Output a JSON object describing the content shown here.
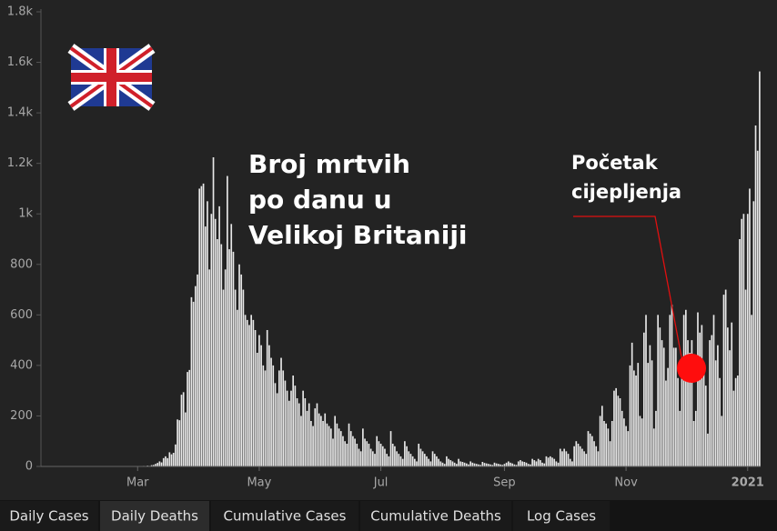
{
  "chart_data": {
    "type": "bar",
    "color": "#e8e8e8",
    "annotations": [
      {
        "lines": [
          "Broj mrtvih",
          "po danu u",
          "Velikoj Britaniji"
        ]
      },
      {
        "lines": [
          "Početak",
          "cijepljenja"
        ]
      }
    ],
    "tabs": [
      "Daily Cases",
      "Daily Deaths",
      "Cumulative Cases",
      "Cumulative Deaths",
      "Log Cases"
    ],
    "active_tab": 1,
    "xlim": [
      -0.5,
      360.5
    ],
    "xticks": [
      {
        "value": 48,
        "label": "Mar"
      },
      {
        "value": 109,
        "label": "May"
      },
      {
        "value": 170,
        "label": "Jul"
      },
      {
        "value": 232,
        "label": "Sep"
      },
      {
        "value": 293,
        "label": "Nov"
      },
      {
        "value": 354,
        "label": "2021"
      }
    ],
    "ylim": [
      0,
      1800
    ],
    "yticks": [
      0,
      200,
      400,
      600,
      800,
      {
        "value": 1000,
        "label": "1k"
      },
      {
        "value": 1200,
        "label": "1.2k"
      },
      {
        "value": 1400,
        "label": "1.4k"
      },
      {
        "value": 1600,
        "label": "1.6k"
      },
      {
        "value": 1800,
        "label": "1.8k"
      }
    ],
    "grid": false,
    "x": [
      0,
      1,
      2,
      3,
      4,
      5,
      6,
      7,
      8,
      9,
      10,
      11,
      12,
      13,
      14,
      15,
      16,
      17,
      18,
      19,
      20,
      21,
      22,
      23,
      24,
      25,
      26,
      27,
      28,
      29,
      30,
      31,
      32,
      33,
      34,
      35,
      36,
      37,
      38,
      39,
      40,
      41,
      42,
      43,
      44,
      45,
      46,
      47,
      48,
      49,
      50,
      51,
      52,
      53,
      54,
      55,
      56,
      57,
      58,
      59,
      60,
      61,
      62,
      63,
      64,
      65,
      66,
      67,
      68,
      69,
      70,
      71,
      72,
      73,
      74,
      75,
      76,
      77,
      78,
      79,
      80,
      81,
      82,
      83,
      84,
      85,
      86,
      87,
      88,
      89,
      90,
      91,
      92,
      93,
      94,
      95,
      96,
      97,
      98,
      99,
      100,
      101,
      102,
      103,
      104,
      105,
      106,
      107,
      108,
      109,
      110,
      111,
      112,
      113,
      114,
      115,
      116,
      117,
      118,
      119,
      120,
      121,
      122,
      123,
      124,
      125,
      126,
      127,
      128,
      129,
      130,
      131,
      132,
      133,
      134,
      135,
      136,
      137,
      138,
      139,
      140,
      141,
      142,
      143,
      144,
      145,
      146,
      147,
      148,
      149,
      150,
      151,
      152,
      153,
      154,
      155,
      156,
      157,
      158,
      159,
      160,
      161,
      162,
      163,
      164,
      165,
      166,
      167,
      168,
      169,
      170,
      171,
      172,
      173,
      174,
      175,
      176,
      177,
      178,
      179,
      180,
      181,
      182,
      183,
      184,
      185,
      186,
      187,
      188,
      189,
      190,
      191,
      192,
      193,
      194,
      195,
      196,
      197,
      198,
      199,
      200,
      201,
      202,
      203,
      204,
      205,
      206,
      207,
      208,
      209,
      210,
      211,
      212,
      213,
      214,
      215,
      216,
      217,
      218,
      219,
      220,
      221,
      222,
      223,
      224,
      225,
      226,
      227,
      228,
      229,
      230,
      231,
      232,
      233,
      234,
      235,
      236,
      237,
      238,
      239,
      240,
      241,
      242,
      243,
      244,
      245,
      246,
      247,
      248,
      249,
      250,
      251,
      252,
      253,
      254,
      255,
      256,
      257,
      258,
      259,
      260,
      261,
      262,
      263,
      264,
      265,
      266,
      267,
      268,
      269,
      270,
      271,
      272,
      273,
      274,
      275,
      276,
      277,
      278,
      279,
      280,
      281,
      282,
      283,
      284,
      285,
      286,
      287,
      288,
      289,
      290,
      291,
      292,
      293,
      294,
      295,
      296,
      297,
      298,
      299,
      300,
      301,
      302,
      303,
      304,
      305,
      306,
      307,
      308,
      309,
      310,
      311,
      312,
      313,
      314,
      315,
      316,
      317,
      318,
      319,
      320,
      321,
      322,
      323,
      324,
      325,
      326,
      327,
      328,
      329,
      330,
      331,
      332,
      333,
      334,
      335,
      336,
      337,
      338,
      339,
      340,
      341,
      342,
      343,
      344,
      345,
      346,
      347,
      348,
      349,
      350,
      351,
      352,
      353,
      354,
      355,
      356,
      357,
      358,
      359,
      360
    ],
    "values": [
      0,
      0,
      0,
      0,
      0,
      0,
      0,
      0,
      0,
      0,
      0,
      0,
      0,
      0,
      0,
      0,
      0,
      0,
      0,
      0,
      0,
      0,
      0,
      0,
      0,
      0,
      0,
      0,
      0,
      0,
      0,
      0,
      0,
      0,
      0,
      0,
      0,
      0,
      0,
      0,
      0,
      0,
      0,
      0,
      1,
      0,
      1,
      0,
      0,
      0,
      1,
      2,
      1,
      3,
      2,
      5,
      6,
      10,
      14,
      20,
      16,
      33,
      40,
      33,
      56,
      48,
      54,
      87,
      186,
      183,
      284,
      294,
      214,
      374,
      382,
      670,
      652,
      714,
      760,
      1100,
      1110,
      1120,
      950,
      1050,
      780,
      1000,
      1224,
      980,
      900,
      1030,
      880,
      700,
      780,
      1150,
      860,
      960,
      850,
      700,
      620,
      800,
      760,
      700,
      600,
      580,
      560,
      600,
      580,
      540,
      450,
      520,
      480,
      400,
      380,
      540,
      480,
      430,
      400,
      330,
      290,
      380,
      430,
      380,
      340,
      300,
      260,
      300,
      360,
      320,
      270,
      250,
      200,
      300,
      270,
      220,
      250,
      180,
      160,
      230,
      250,
      210,
      200,
      180,
      210,
      170,
      160,
      150,
      110,
      200,
      170,
      150,
      140,
      120,
      100,
      90,
      170,
      140,
      120,
      110,
      90,
      70,
      60,
      150,
      110,
      100,
      90,
      70,
      60,
      50,
      120,
      100,
      90,
      80,
      70,
      50,
      40,
      140,
      90,
      80,
      60,
      50,
      40,
      30,
      100,
      80,
      60,
      50,
      40,
      30,
      20,
      90,
      70,
      60,
      50,
      40,
      30,
      20,
      60,
      50,
      40,
      30,
      20,
      15,
      10,
      40,
      30,
      25,
      20,
      15,
      10,
      30,
      20,
      18,
      15,
      12,
      8,
      20,
      15,
      12,
      10,
      8,
      6,
      18,
      14,
      12,
      10,
      8,
      6,
      15,
      12,
      10,
      8,
      6,
      10,
      15,
      20,
      15,
      12,
      8,
      6,
      20,
      25,
      20,
      18,
      15,
      10,
      8,
      30,
      25,
      20,
      30,
      25,
      15,
      12,
      40,
      35,
      40,
      35,
      30,
      20,
      15,
      70,
      60,
      70,
      60,
      50,
      30,
      20,
      80,
      100,
      90,
      80,
      70,
      60,
      50,
      140,
      130,
      120,
      100,
      80,
      60,
      200,
      240,
      180,
      170,
      150,
      100,
      180,
      300,
      310,
      280,
      270,
      220,
      190,
      160,
      140,
      400,
      490,
      380,
      360,
      410,
      200,
      190,
      530,
      600,
      410,
      480,
      420,
      150,
      220,
      600,
      550,
      500,
      470,
      340,
      390,
      600,
      640,
      470,
      470,
      350,
      220,
      400,
      600,
      620,
      500,
      450,
      500,
      180,
      220,
      610,
      530,
      560,
      400,
      320,
      130,
      500,
      520,
      600,
      420,
      480,
      350,
      200,
      680,
      700,
      550,
      460,
      570,
      300,
      350,
      360,
      900,
      980,
      1000,
      700,
      1000,
      1100,
      600,
      1050,
      1350,
      1250,
      1564
    ]
  }
}
